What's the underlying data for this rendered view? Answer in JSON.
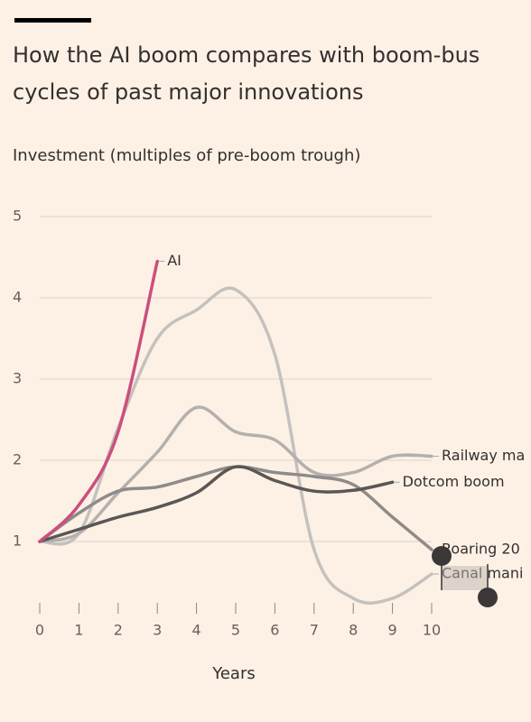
{
  "chart_data": {
    "type": "line",
    "title": [
      "How the AI boom compares with boom-bus",
      "cycles of past major innovations"
    ],
    "subtitle": "Investment (multiples of pre-boom trough)",
    "x_label": "Years",
    "x": [
      0,
      1,
      2,
      3,
      4,
      5,
      6,
      7,
      8,
      9,
      10
    ],
    "xlim": [
      0,
      10
    ],
    "xticks": [
      0,
      1,
      2,
      3,
      4,
      5,
      6,
      7,
      8,
      9,
      10
    ],
    "ylim": [
      0,
      5
    ],
    "yticks": [
      1,
      2,
      3,
      4,
      5
    ],
    "grid": true,
    "series": [
      {
        "name": "Canal mani",
        "color": "#c4c1be",
        "values": [
          1,
          1.1,
          2.4,
          3.5,
          3.85,
          4.1,
          3.3,
          0.9,
          0.3,
          0.3,
          0.6
        ]
      },
      {
        "name": "Railway ma",
        "color": "#b3b0ad",
        "values": [
          1,
          1.1,
          1.6,
          2.1,
          2.65,
          2.35,
          2.25,
          1.85,
          1.85,
          2.05,
          2.05
        ]
      },
      {
        "name": "Roaring 20",
        "color": "#8e8b88",
        "values": [
          1,
          1.35,
          1.62,
          1.67,
          1.8,
          1.92,
          1.85,
          1.8,
          1.7,
          1.3,
          0.9
        ]
      },
      {
        "name": "Dotcom boom",
        "color": "#5a5755",
        "values": [
          1,
          1.15,
          1.3,
          1.42,
          1.6,
          1.92,
          1.75,
          1.62,
          1.63,
          1.73,
          null
        ]
      },
      {
        "name": "AI",
        "color": "#cc4f7d",
        "values": [
          1,
          1.45,
          2.35,
          4.45,
          null,
          null,
          null,
          null,
          null,
          null,
          null
        ]
      }
    ]
  }
}
